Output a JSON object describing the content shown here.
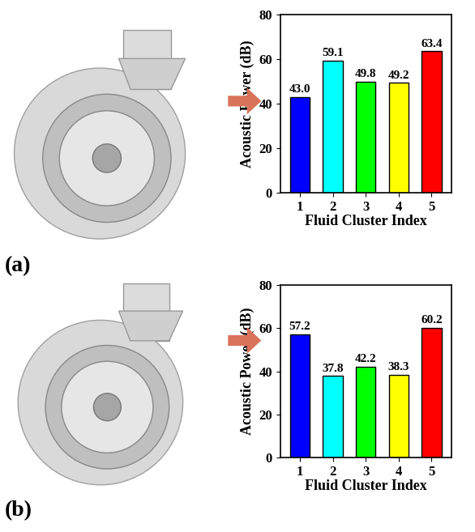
{
  "chart_data": [
    {
      "type": "bar",
      "title": "(a)",
      "x_label": "Fluid Cluster Index",
      "y_label": "Acoustic Power (dB)",
      "categories": [
        "1",
        "2",
        "3",
        "4",
        "5"
      ],
      "values": [
        43.0,
        59.1,
        49.8,
        49.2,
        63.4
      ],
      "colors": [
        "#0000ff",
        "#00ffff",
        "#00ff00",
        "#ffff00",
        "#ff0000"
      ],
      "ylim": [
        0,
        80
      ],
      "yticks": [
        0,
        20,
        40,
        60,
        80
      ],
      "data_labels": true,
      "grid": false
    },
    {
      "type": "bar",
      "title": "(b)",
      "x_label": "Fluid Cluster Index",
      "y_label": "Acoustic Power (dB)",
      "categories": [
        "1",
        "2",
        "3",
        "4",
        "5"
      ],
      "values": [
        57.2,
        37.8,
        42.2,
        38.3,
        60.2
      ],
      "colors": [
        "#0000ff",
        "#00ffff",
        "#00ff00",
        "#ffff00",
        "#ff0000"
      ],
      "ylim": [
        0,
        80
      ],
      "yticks": [
        0,
        20,
        40,
        60,
        80
      ],
      "data_labels": true,
      "grid": false
    }
  ]
}
